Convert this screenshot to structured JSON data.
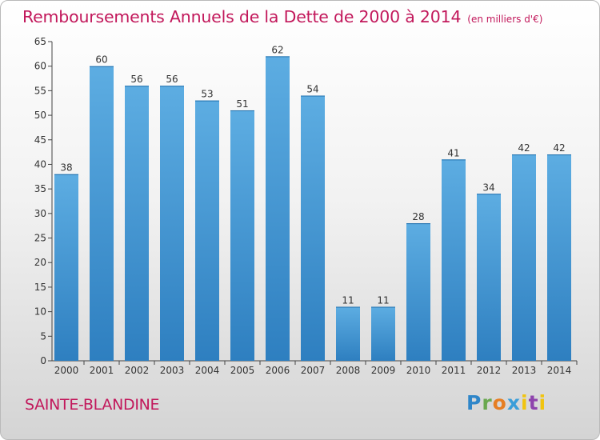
{
  "header": {
    "title": "Remboursements Annuels de la Dette de 2000 à 2014",
    "subtitle": "(en milliers d'€)"
  },
  "footer": {
    "place": "SAINTE-BLANDINE",
    "logo": "Proxiti"
  },
  "colors": {
    "title": "#c2185b",
    "bar_light": "#5dade2",
    "bar_dark": "#2e7fc0"
  },
  "chart_data": {
    "type": "bar",
    "title": "Remboursements Annuels de la Dette de 2000 à 2014",
    "subtitle": "(en milliers d'€)",
    "categories": [
      "2000",
      "2001",
      "2002",
      "2003",
      "2004",
      "2005",
      "2006",
      "2007",
      "2008",
      "2009",
      "2010",
      "2011",
      "2012",
      "2013",
      "2014"
    ],
    "values": [
      38,
      60,
      56,
      56,
      53,
      51,
      62,
      54,
      11,
      11,
      28,
      41,
      34,
      42,
      42
    ],
    "ylim": [
      0,
      65
    ],
    "yticks": [
      0,
      5,
      10,
      15,
      20,
      25,
      30,
      35,
      40,
      45,
      50,
      55,
      60,
      65
    ],
    "grid": false,
    "legend": "none"
  }
}
